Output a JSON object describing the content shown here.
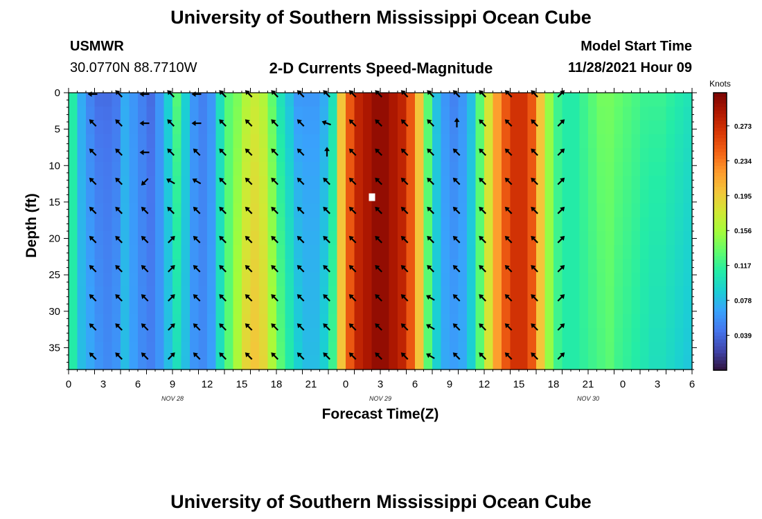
{
  "header": {
    "title": "University of Southern Mississippi Ocean Cube",
    "station": "USMWR",
    "coordinates": "30.0770N  88.7710W",
    "subtitle": "2-D Currents Speed-Magnitude",
    "model_start_label": "Model Start Time",
    "model_start_value": "11/28/2021 Hour 09"
  },
  "footer": {
    "title": "University of Southern Mississippi Ocean Cube"
  },
  "colors": {
    "colormap": [
      "#30123b",
      "#4145ab",
      "#4675ed",
      "#39a2fc",
      "#1bcfd4",
      "#24eca6",
      "#61fc6c",
      "#a4fc3b",
      "#d1e834",
      "#f3c63a",
      "#fe9b2d",
      "#f36315",
      "#d93806",
      "#b11901",
      "#7a0403"
    ],
    "arrow": "#000000",
    "marker": "#ffffff"
  },
  "chart_data": {
    "type": "heatmap",
    "title": "2-D Currents Speed-Magnitude",
    "xlabel": "Forecast Time(Z)",
    "ylabel": "Depth (ft)",
    "x_tick_labels": [
      "0",
      "3",
      "6",
      "9",
      "12",
      "15",
      "18",
      "21",
      "0",
      "3",
      "6",
      "9",
      "12",
      "15",
      "18",
      "21",
      "0",
      "3",
      "6"
    ],
    "date_labels": [
      {
        "label": "NOV 28",
        "hour": 12
      },
      {
        "label": "NOV 29",
        "hour": 36
      },
      {
        "label": "NOV 30",
        "hour": 60
      }
    ],
    "xlim": [
      0,
      72
    ],
    "ylim": [
      0,
      38
    ],
    "y_ticks": [
      0,
      5,
      10,
      15,
      20,
      25,
      30,
      35
    ],
    "colorbar": {
      "label": "Knots",
      "vmin": 0.0,
      "vmax": 0.31,
      "tick_labels": [
        "0.039",
        "0.078",
        "0.117",
        "0.156",
        "0.195",
        "0.234",
        "0.273"
      ],
      "tick_values": [
        0.039,
        0.078,
        0.117,
        0.156,
        0.195,
        0.234,
        0.273
      ]
    },
    "speed_profile": {
      "hours": [
        0,
        1,
        2,
        3,
        4,
        5,
        6,
        7,
        8,
        9,
        10,
        11,
        12,
        13,
        14,
        15,
        16,
        17,
        18,
        19,
        20,
        21,
        22,
        23,
        24,
        25,
        26,
        27,
        28,
        29,
        30,
        31,
        32,
        33,
        34,
        35,
        36,
        37,
        38,
        39,
        40,
        41,
        42,
        43,
        44,
        45,
        46,
        47,
        48,
        49,
        50,
        51,
        52,
        53,
        54,
        55,
        56,
        57,
        58,
        59,
        60,
        61,
        62,
        63,
        64,
        65,
        66,
        67,
        68,
        69,
        70,
        71,
        72
      ],
      "surface": [
        0.11,
        0.07,
        0.05,
        0.04,
        0.04,
        0.045,
        0.07,
        0.06,
        0.05,
        0.04,
        0.06,
        0.09,
        0.13,
        0.09,
        0.06,
        0.05,
        0.06,
        0.1,
        0.13,
        0.14,
        0.16,
        0.17,
        0.16,
        0.13,
        0.1,
        0.08,
        0.06,
        0.06,
        0.06,
        0.07,
        0.1,
        0.2,
        0.25,
        0.28,
        0.29,
        0.3,
        0.3,
        0.29,
        0.28,
        0.25,
        0.2,
        0.13,
        0.08,
        0.06,
        0.05,
        0.06,
        0.08,
        0.13,
        0.18,
        0.22,
        0.25,
        0.27,
        0.27,
        0.25,
        0.2,
        0.15,
        0.12,
        0.11,
        0.11,
        0.12,
        0.13,
        0.14,
        0.14,
        0.135,
        0.13,
        0.125,
        0.12,
        0.12,
        0.12,
        0.115,
        0.11,
        0.105,
        0.1
      ],
      "deep": [
        0.11,
        0.08,
        0.07,
        0.06,
        0.055,
        0.06,
        0.08,
        0.065,
        0.055,
        0.05,
        0.06,
        0.08,
        0.1,
        0.08,
        0.06,
        0.055,
        0.065,
        0.1,
        0.13,
        0.16,
        0.19,
        0.2,
        0.19,
        0.16,
        0.13,
        0.11,
        0.09,
        0.08,
        0.08,
        0.09,
        0.12,
        0.2,
        0.25,
        0.28,
        0.29,
        0.3,
        0.3,
        0.29,
        0.28,
        0.25,
        0.2,
        0.13,
        0.09,
        0.07,
        0.065,
        0.07,
        0.09,
        0.13,
        0.18,
        0.22,
        0.25,
        0.27,
        0.27,
        0.25,
        0.2,
        0.15,
        0.12,
        0.11,
        0.11,
        0.115,
        0.12,
        0.125,
        0.13,
        0.12,
        0.115,
        0.11,
        0.105,
        0.1,
        0.1,
        0.095,
        0.09,
        0.085,
        0.08
      ]
    },
    "arrow_hours": [
      3,
      6,
      9,
      12,
      15,
      18,
      21,
      24,
      27,
      30,
      33,
      36,
      39,
      42,
      45,
      48,
      51,
      54,
      57
    ],
    "arrow_depths": [
      0,
      4,
      8,
      12,
      16,
      20,
      24,
      28,
      32,
      36
    ],
    "arrow_directions_deg": [
      [
        270,
        315,
        270,
        315,
        270,
        315,
        315,
        315,
        315,
        315,
        315,
        315,
        315,
        315,
        315,
        315,
        315,
        315,
        45
      ],
      [
        315,
        315,
        270,
        315,
        270,
        315,
        315,
        315,
        315,
        290,
        315,
        315,
        315,
        315,
        360,
        315,
        315,
        315,
        45
      ],
      [
        315,
        315,
        270,
        315,
        315,
        315,
        315,
        315,
        315,
        360,
        315,
        315,
        315,
        315,
        315,
        315,
        315,
        315,
        45
      ],
      [
        315,
        315,
        225,
        300,
        300,
        315,
        315,
        315,
        315,
        315,
        315,
        315,
        315,
        315,
        315,
        315,
        315,
        315,
        45
      ],
      [
        315,
        315,
        315,
        315,
        315,
        315,
        315,
        315,
        315,
        315,
        315,
        315,
        315,
        315,
        315,
        315,
        315,
        315,
        45
      ],
      [
        315,
        315,
        315,
        45,
        315,
        315,
        315,
        315,
        315,
        315,
        315,
        315,
        315,
        315,
        315,
        315,
        315,
        315,
        45
      ],
      [
        315,
        315,
        315,
        45,
        315,
        315,
        315,
        315,
        315,
        315,
        315,
        315,
        315,
        315,
        315,
        315,
        315,
        315,
        45
      ],
      [
        315,
        315,
        315,
        45,
        315,
        315,
        315,
        315,
        315,
        315,
        315,
        315,
        315,
        300,
        315,
        315,
        315,
        315,
        45
      ],
      [
        315,
        315,
        315,
        45,
        315,
        315,
        315,
        315,
        315,
        315,
        315,
        315,
        315,
        300,
        315,
        315,
        315,
        315,
        45
      ],
      [
        315,
        315,
        315,
        45,
        315,
        315,
        315,
        315,
        315,
        315,
        315,
        315,
        315,
        300,
        315,
        315,
        315,
        315,
        45
      ]
    ],
    "marker": {
      "hour": 35,
      "depth": 14.2
    }
  }
}
